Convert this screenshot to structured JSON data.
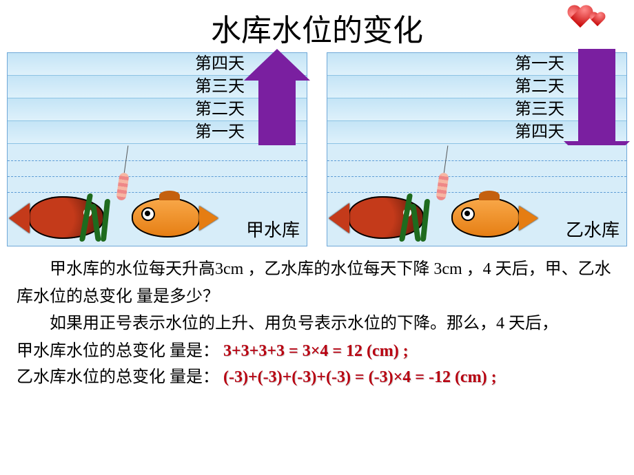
{
  "title": "水库水位的变化",
  "reservoirs": {
    "left": {
      "days": [
        "第四天",
        "第三天",
        "第二天",
        "第一天"
      ],
      "label": "甲水库",
      "arrow_direction": "up",
      "arrow_color": "#7a1fa0"
    },
    "right": {
      "days": [
        "第一天",
        "第二天",
        "第三天",
        "第四天"
      ],
      "label": "乙水库",
      "arrow_direction": "down",
      "arrow_color": "#7a1fa0"
    }
  },
  "colors": {
    "water_light": "#def1fb",
    "water_line": "#8cc3e4",
    "panel_border": "#6fa8d8",
    "answer_text": "#b80010"
  },
  "paragraphs": {
    "p1": "甲水库的水位每天升高3cm ，乙水库的水位每天下降 3cm ，4 天后，甲、乙水库水位的总变化 量是多少？",
    "p2": "如果用正号表示水位的上升、用负号表示水位的下降。那么，4 天后，"
  },
  "answers": {
    "line1_label": "甲水库水位的总变化 量是：",
    "line1_expr": "3+3+3+3 = 3×4 = 12 (cm) ;",
    "line2_label": "乙水库水位的总变化 量是：",
    "line2_expr_a": "(-3)+(-3)+(-3)+(-3) = (-3)×4 = ",
    "line2_neg": "-",
    "line2_expr_b": "12 (cm) ;"
  }
}
